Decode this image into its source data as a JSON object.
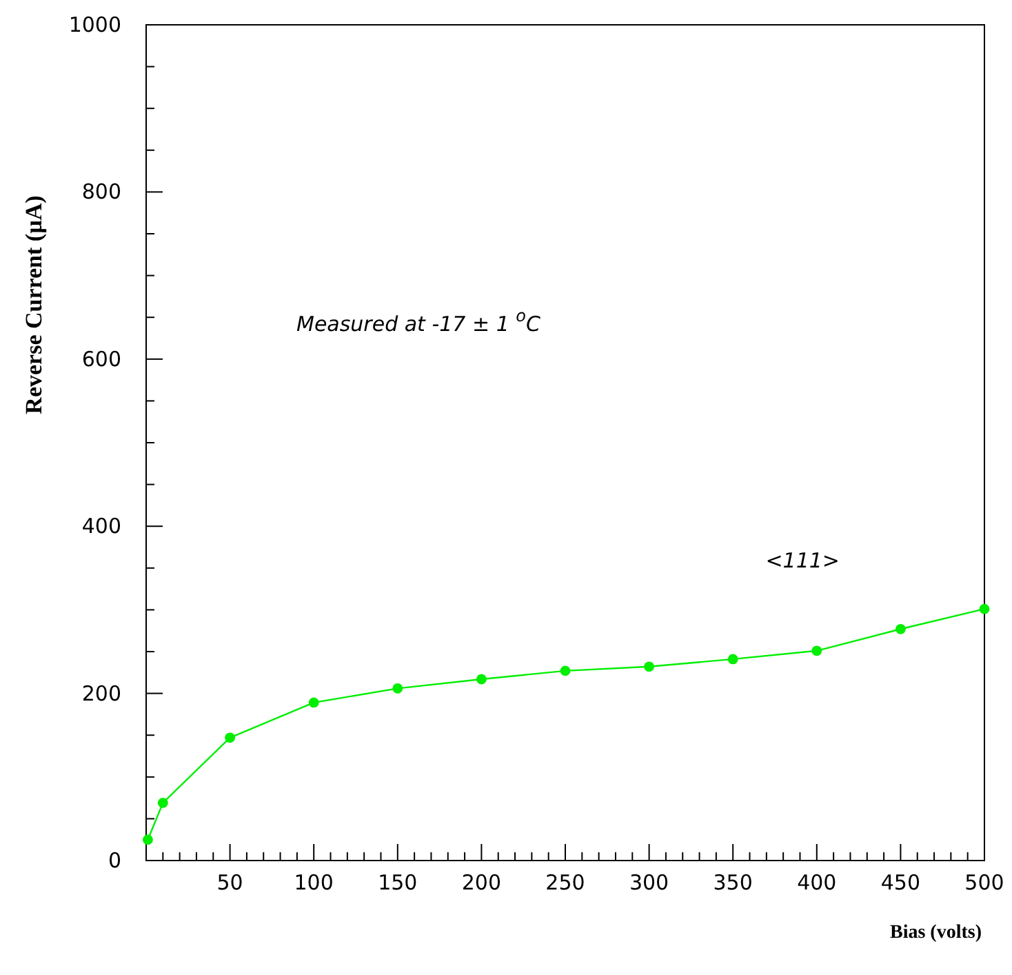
{
  "chart_data": {
    "type": "line",
    "xlabel": "Bias (volts)",
    "ylabel": "Reverse Current (µA)",
    "annotations": [
      "Measured at -17 ± 1 $^{o}$C"
    ],
    "x": [
      1,
      10,
      50,
      100,
      150,
      200,
      250,
      300,
      350,
      400,
      450,
      500
    ],
    "series": [
      {
        "name": "<111>",
        "color": "#00ee00",
        "values": [
          25,
          69,
          147,
          189,
          206,
          217,
          227,
          232,
          241,
          251,
          277,
          301
        ]
      }
    ],
    "xlim": [
      0,
      500
    ],
    "xticks": [
      {
        "value": 10,
        "label": null
      },
      {
        "value": 20,
        "label": null
      },
      {
        "value": 30,
        "label": null
      },
      {
        "value": 40,
        "label": null
      },
      50,
      {
        "value": 60,
        "label": null
      },
      {
        "value": 70,
        "label": null
      },
      {
        "value": 80,
        "label": null
      },
      {
        "value": 90,
        "label": null
      },
      100,
      {
        "value": 110,
        "label": null
      },
      {
        "value": 120,
        "label": null
      },
      {
        "value": 130,
        "label": null
      },
      {
        "value": 140,
        "label": null
      },
      150,
      {
        "value": 160,
        "label": null
      },
      {
        "value": 170,
        "label": null
      },
      {
        "value": 180,
        "label": null
      },
      {
        "value": 190,
        "label": null
      },
      200,
      {
        "value": 210,
        "label": null
      },
      {
        "value": 220,
        "label": null
      },
      {
        "value": 230,
        "label": null
      },
      {
        "value": 240,
        "label": null
      },
      250,
      {
        "value": 260,
        "label": null
      },
      {
        "value": 270,
        "label": null
      },
      {
        "value": 280,
        "label": null
      },
      {
        "value": 290,
        "label": null
      },
      300,
      {
        "value": 310,
        "label": null
      },
      {
        "value": 320,
        "label": null
      },
      {
        "value": 330,
        "label": null
      },
      {
        "value": 340,
        "label": null
      },
      350,
      {
        "value": 360,
        "label": null
      },
      {
        "value": 370,
        "label": null
      },
      {
        "value": 380,
        "label": null
      },
      {
        "value": 390,
        "label": null
      },
      400,
      {
        "value": 410,
        "label": null
      },
      {
        "value": 420,
        "label": null
      },
      {
        "value": 430,
        "label": null
      },
      {
        "value": 440,
        "label": null
      },
      450,
      {
        "value": 460,
        "label": null
      },
      {
        "value": 470,
        "label": null
      },
      {
        "value": 480,
        "label": null
      },
      {
        "value": 490,
        "label": null
      },
      500
    ],
    "ylim": [
      0,
      1000
    ],
    "yticks": [
      0,
      {
        "value": 50,
        "label": null
      },
      {
        "value": 100,
        "label": null
      },
      {
        "value": 150,
        "label": null
      },
      200,
      {
        "value": 250,
        "label": null
      },
      {
        "value": 300,
        "label": null
      },
      {
        "value": 350,
        "label": null
      },
      400,
      {
        "value": 450,
        "label": null
      },
      {
        "value": 500,
        "label": null
      },
      {
        "value": 550,
        "label": null
      },
      600,
      {
        "value": 650,
        "label": null
      },
      {
        "value": 700,
        "label": null
      },
      {
        "value": 750,
        "label": null
      },
      800,
      {
        "value": 850,
        "label": null
      },
      {
        "value": 900,
        "label": null
      },
      {
        "value": 950,
        "label": null
      },
      1000
    ],
    "marker": "circle",
    "line_style": "solid",
    "grid": false
  }
}
